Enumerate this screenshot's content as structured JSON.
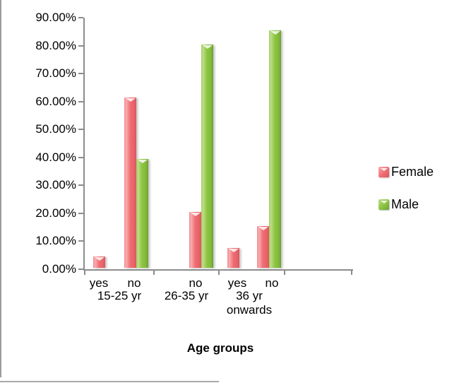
{
  "chart_data": {
    "type": "bar",
    "title": "",
    "xlabel": "Age groups",
    "ylabel": "",
    "unit": "percent",
    "grid": false,
    "legend_position": "right",
    "y_axis": {
      "min": 0,
      "max": 90,
      "tick_step": 10,
      "tick_labels_top_to_bottom": [
        "90.00%",
        "80.00%",
        "70.00%",
        "60.00%",
        "50.00%",
        "40.00%",
        "30.00%",
        "20.00%",
        "10.00%",
        "0.00%"
      ]
    },
    "series": [
      {
        "name": "Female",
        "color": "#EE6D72"
      },
      {
        "name": "Male",
        "color": "#8BC43F"
      }
    ],
    "groups": [
      {
        "label": "15-25 yr",
        "bars": [
          {
            "sub": "yes",
            "Female": 4,
            "Male": null
          },
          {
            "sub": "no",
            "Female": 61,
            "Male": 39
          }
        ]
      },
      {
        "label": "26-35 yr",
        "bars": [
          {
            "sub": "no",
            "Female": 20,
            "Male": 80
          }
        ]
      },
      {
        "label": "36 yr onwards",
        "bars": [
          {
            "sub": "yes",
            "Female": 7,
            "Male": null
          },
          {
            "sub": "no",
            "Female": 15,
            "Male": 85
          }
        ]
      }
    ]
  },
  "colors": {
    "axis": "#8C8C8C",
    "text": "#000000"
  },
  "legend": {
    "items": [
      {
        "label": "Female"
      },
      {
        "label": "Male"
      }
    ]
  }
}
